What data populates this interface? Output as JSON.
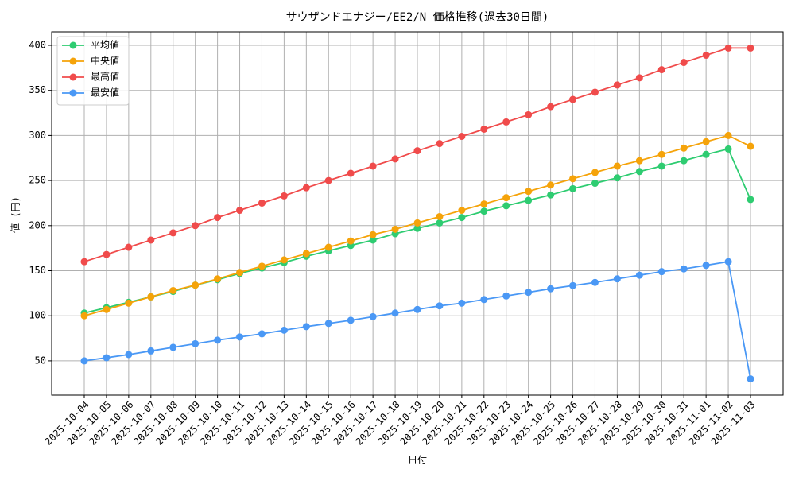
{
  "chart_data": {
    "type": "line",
    "title": "サウザンドエナジー/EE2/N 価格推移(過去30日間)",
    "x_label": "日付",
    "y_label": "値 (円)",
    "categories": [
      "2025-10-04",
      "2025-10-05",
      "2025-10-06",
      "2025-10-07",
      "2025-10-08",
      "2025-10-09",
      "2025-10-10",
      "2025-10-11",
      "2025-10-12",
      "2025-10-13",
      "2025-10-14",
      "2025-10-15",
      "2025-10-16",
      "2025-10-17",
      "2025-10-18",
      "2025-10-19",
      "2025-10-20",
      "2025-10-21",
      "2025-10-22",
      "2025-10-23",
      "2025-10-24",
      "2025-10-25",
      "2025-10-26",
      "2025-10-27",
      "2025-10-28",
      "2025-10-29",
      "2025-10-30",
      "2025-10-31",
      "2025-11-01",
      "2025-11-02",
      "2025-11-03"
    ],
    "series": [
      {
        "name": "平均値",
        "color": "#2ecc71",
        "values": [
          103,
          109,
          115,
          121,
          127,
          134,
          140,
          147,
          153,
          159,
          166,
          172,
          178,
          184,
          191,
          197,
          203,
          209,
          216,
          222,
          228,
          234,
          241,
          247,
          253,
          260,
          266,
          272,
          279,
          285,
          229
        ]
      },
      {
        "name": "中央値",
        "color": "#f5a30a",
        "values": [
          100,
          107,
          114,
          121,
          128,
          134,
          141,
          148,
          155,
          162,
          169,
          176,
          183,
          190,
          196,
          203,
          210,
          217,
          224,
          231,
          238,
          245,
          252,
          259,
          266,
          272,
          279,
          286,
          293,
          300,
          288
        ]
      },
      {
        "name": "最高値",
        "color": "#f04b4b",
        "values": [
          160,
          168,
          176,
          184,
          192,
          200,
          209,
          217,
          225,
          233,
          242,
          250,
          258,
          266,
          274,
          283,
          291,
          299,
          307,
          315,
          323,
          332,
          340,
          348,
          356,
          364,
          373,
          381,
          389,
          397,
          397
        ]
      },
      {
        "name": "最安値",
        "color": "#4a98f5",
        "values": [
          50,
          53.5,
          57,
          61,
          65,
          69,
          73,
          76.5,
          80,
          84,
          88,
          91.5,
          95,
          99,
          103,
          107,
          111,
          114,
          118,
          122,
          126,
          130,
          133.5,
          137,
          141,
          145,
          149,
          152,
          156,
          160,
          30
        ]
      }
    ],
    "ylim": [
      12,
      415
    ],
    "yticks": [
      50,
      100,
      150,
      200,
      250,
      300,
      350,
      400
    ],
    "grid": true,
    "legend": "upper-left"
  }
}
